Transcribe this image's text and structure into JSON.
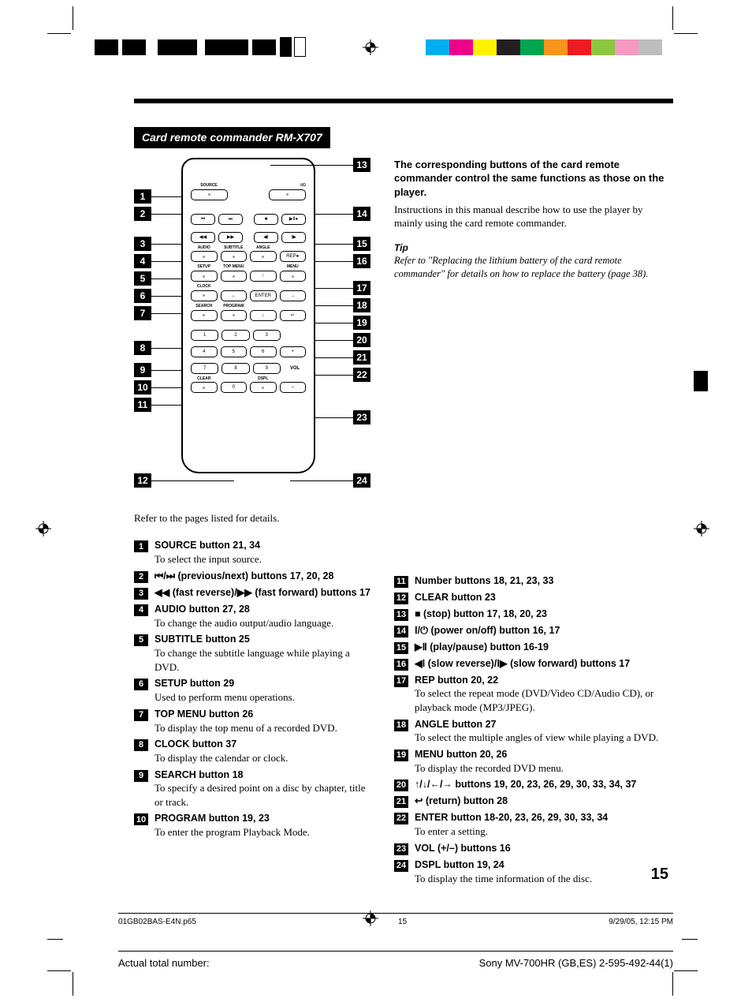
{
  "section_title": "Card remote commander RM-X707",
  "diagram": {
    "left_callouts": [
      1,
      2,
      3,
      4,
      5,
      6,
      7,
      8,
      9,
      10,
      11,
      12
    ],
    "right_callouts": [
      13,
      14,
      15,
      16,
      17,
      18,
      19,
      20,
      21,
      22,
      23,
      24
    ],
    "labels": {
      "source": "SOURCE",
      "audio": "AUDIO",
      "subtitle": "SUBTITLE",
      "angle": "ANGLE",
      "setup": "SETUP",
      "topmenu": "TOP MENU",
      "menu": "MENU",
      "clock": "CLOCK",
      "enter": "ENTER",
      "search": "SEARCH",
      "program": "PROGRAM",
      "rep": "REP",
      "vol": "VOL",
      "clear": "CLEAR",
      "dspl": "DSPL"
    }
  },
  "ref_text": "Refer to the pages listed for details.",
  "intro_bold": "The corresponding buttons of the card remote commander control the same functions as those on the player.",
  "intro_text": "Instructions in this manual describe how to use the player by mainly using the card remote commander.",
  "tip_head": "Tip",
  "tip_body": "Refer to \"Replacing the lithium battery of the card remote commander\" for details on how to replace the battery (page 38).",
  "left_entries": [
    {
      "n": "1",
      "title": "SOURCE button  21, 34",
      "desc": "To select the input source."
    },
    {
      "n": "2",
      "title": "⏮/⏭ (previous/next) buttons  17, 20, 28",
      "desc": ""
    },
    {
      "n": "3",
      "title": "◀◀ (fast reverse)/▶▶ (fast forward) buttons  17",
      "desc": ""
    },
    {
      "n": "4",
      "title": "AUDIO button  27, 28",
      "desc": "To change the audio output/audio language."
    },
    {
      "n": "5",
      "title": "SUBTITLE button  25",
      "desc": "To change the subtitle language while playing a DVD."
    },
    {
      "n": "6",
      "title": "SETUP button  29",
      "desc": "Used to perform menu operations."
    },
    {
      "n": "7",
      "title": "TOP MENU button  26",
      "desc": "To display the top menu of a recorded DVD."
    },
    {
      "n": "8",
      "title": "CLOCK button  37",
      "desc": "To display the calendar or clock."
    },
    {
      "n": "9",
      "title": "SEARCH button  18",
      "desc": "To specify a desired point on a disc by chapter, title or track."
    },
    {
      "n": "10",
      "title": "PROGRAM button  19, 23",
      "desc": "To enter the program Playback Mode."
    }
  ],
  "right_entries": [
    {
      "n": "11",
      "title": "Number buttons  18, 21, 23, 33",
      "desc": ""
    },
    {
      "n": "12",
      "title": "CLEAR button  23",
      "desc": ""
    },
    {
      "n": "13",
      "title": "■ (stop) button  17, 18, 20, 23",
      "desc": ""
    },
    {
      "n": "14",
      "title": "Ⅰ/⏻ (power on/off) button  16, 17",
      "desc": ""
    },
    {
      "n": "15",
      "title": "▶Ⅱ (play/pause) button  16-19",
      "desc": ""
    },
    {
      "n": "16",
      "title": "◀Ⅰ (slow reverse)/Ⅰ▶ (slow forward) buttons  17",
      "desc": ""
    },
    {
      "n": "17",
      "title": "REP button  20, 22",
      "desc": "To select the repeat mode (DVD/Video CD/Audio CD), or playback mode (MP3/JPEG)."
    },
    {
      "n": "18",
      "title": "ANGLE button  27",
      "desc": "To select the multiple angles of view while playing a DVD."
    },
    {
      "n": "19",
      "title": "MENU button  20, 26",
      "desc": "To display the recorded DVD menu."
    },
    {
      "n": "20",
      "title": "↑/↓/←/→ buttons  19, 20, 23, 26, 29, 30, 33, 34, 37",
      "desc": ""
    },
    {
      "n": "21",
      "title": "↩ (return) button  28",
      "desc": ""
    },
    {
      "n": "22",
      "title": "ENTER button  18-20, 23, 26, 29, 30, 33, 34",
      "desc": "To enter a setting."
    },
    {
      "n": "23",
      "title": "VOL (+/–) buttons  16",
      "desc": ""
    },
    {
      "n": "24",
      "title": "DSPL button  19, 24",
      "desc": "To display the time information of the disc."
    }
  ],
  "page_num": "15",
  "footer1": {
    "file": "01GB02BAS-E4N.p65",
    "page": "15",
    "date": "9/29/05, 12:15 PM"
  },
  "footer2": {
    "left": "Actual total number:",
    "right": "Sony MV-700HR (GB,ES) 2-595-492-44(1)"
  },
  "color_swatches": [
    "#00aeef",
    "#ec008c",
    "#fff200",
    "#231f20",
    "#00a651",
    "#f7941d",
    "#ed1c24",
    "#8dc63f",
    "#f49ac1",
    "#bcbec0"
  ],
  "black_swatches_x": [
    120,
    150,
    200,
    250,
    300,
    335,
    368
  ]
}
